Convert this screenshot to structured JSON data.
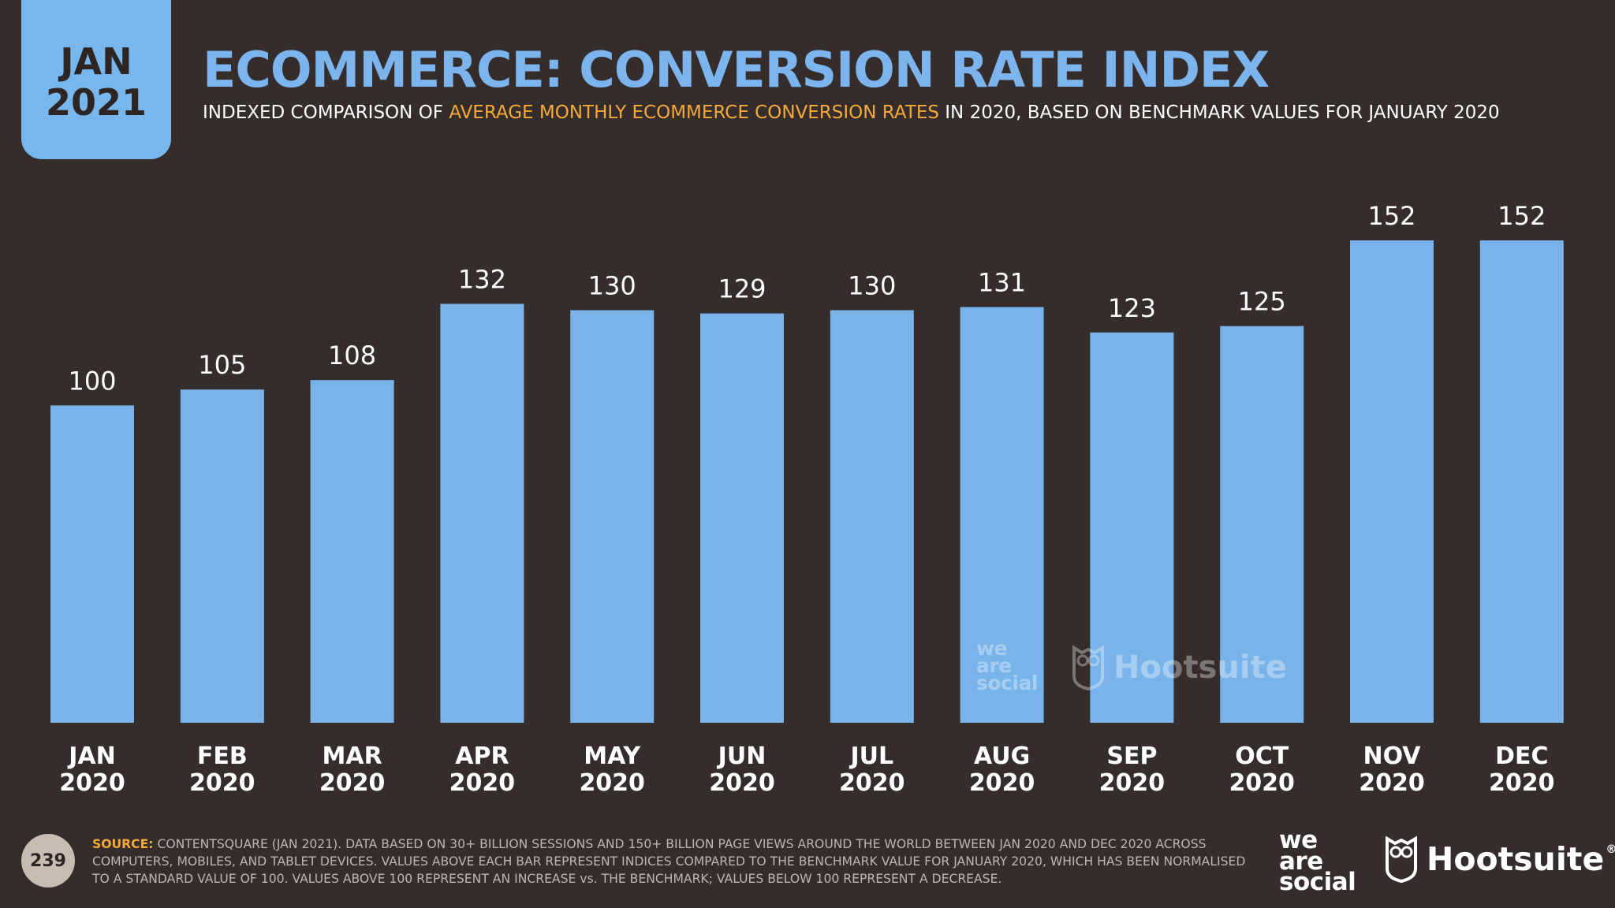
{
  "badge": {
    "month": "JAN",
    "year": "2021"
  },
  "title": "ECOMMERCE: CONVERSION RATE INDEX",
  "subtitle": {
    "before": "INDEXED COMPARISON OF ",
    "highlight": "AVERAGE MONTHLY ECOMMERCE CONVERSION RATES",
    "after": " IN 2020, BASED ON BENCHMARK VALUES FOR JANUARY 2020"
  },
  "colors": {
    "background": "#352d2b",
    "bar": "#78b4ea",
    "title": "#7cb4ee",
    "highlight": "#f4a93a",
    "badge": "#78b6ee"
  },
  "chart_data": {
    "type": "bar",
    "categories": [
      [
        "JAN",
        "2020"
      ],
      [
        "FEB",
        "2020"
      ],
      [
        "MAR",
        "2020"
      ],
      [
        "APR",
        "2020"
      ],
      [
        "MAY",
        "2020"
      ],
      [
        "JUN",
        "2020"
      ],
      [
        "JUL",
        "2020"
      ],
      [
        "AUG",
        "2020"
      ],
      [
        "SEP",
        "2020"
      ],
      [
        "OCT",
        "2020"
      ],
      [
        "NOV",
        "2020"
      ],
      [
        "DEC",
        "2020"
      ]
    ],
    "values": [
      100,
      105,
      108,
      132,
      130,
      129,
      130,
      131,
      123,
      125,
      152,
      152
    ],
    "ylim": [
      0,
      152
    ],
    "data_labels": true,
    "grid": false,
    "legend": "none"
  },
  "watermark": {
    "we_are_social": [
      "we",
      "are",
      "social"
    ],
    "hootsuite": "Hootsuite"
  },
  "footer": {
    "page_number": "239",
    "source_label": "SOURCE:",
    "source_text": " CONTENTSQUARE (JAN 2021). DATA BASED ON 30+ BILLION SESSIONS AND 150+ BILLION PAGE VIEWS AROUND THE WORLD BETWEEN JAN 2020 AND DEC 2020 ACROSS COMPUTERS, MOBILES, AND TABLET DEVICES. VALUES ABOVE EACH BAR REPRESENT INDICES COMPARED TO THE BENCHMARK VALUE FOR JANUARY 2020, WHICH HAS BEEN NORMALISED TO A STANDARD VALUE OF 100. VALUES ABOVE 100 REPRESENT AN INCREASE vs. THE BENCHMARK; VALUES BELOW 100 REPRESENT A DECREASE.",
    "logo_was": [
      "we",
      "are",
      "social"
    ],
    "logo_hootsuite": "Hootsuite",
    "logo_hootsuite_reg": "®"
  }
}
